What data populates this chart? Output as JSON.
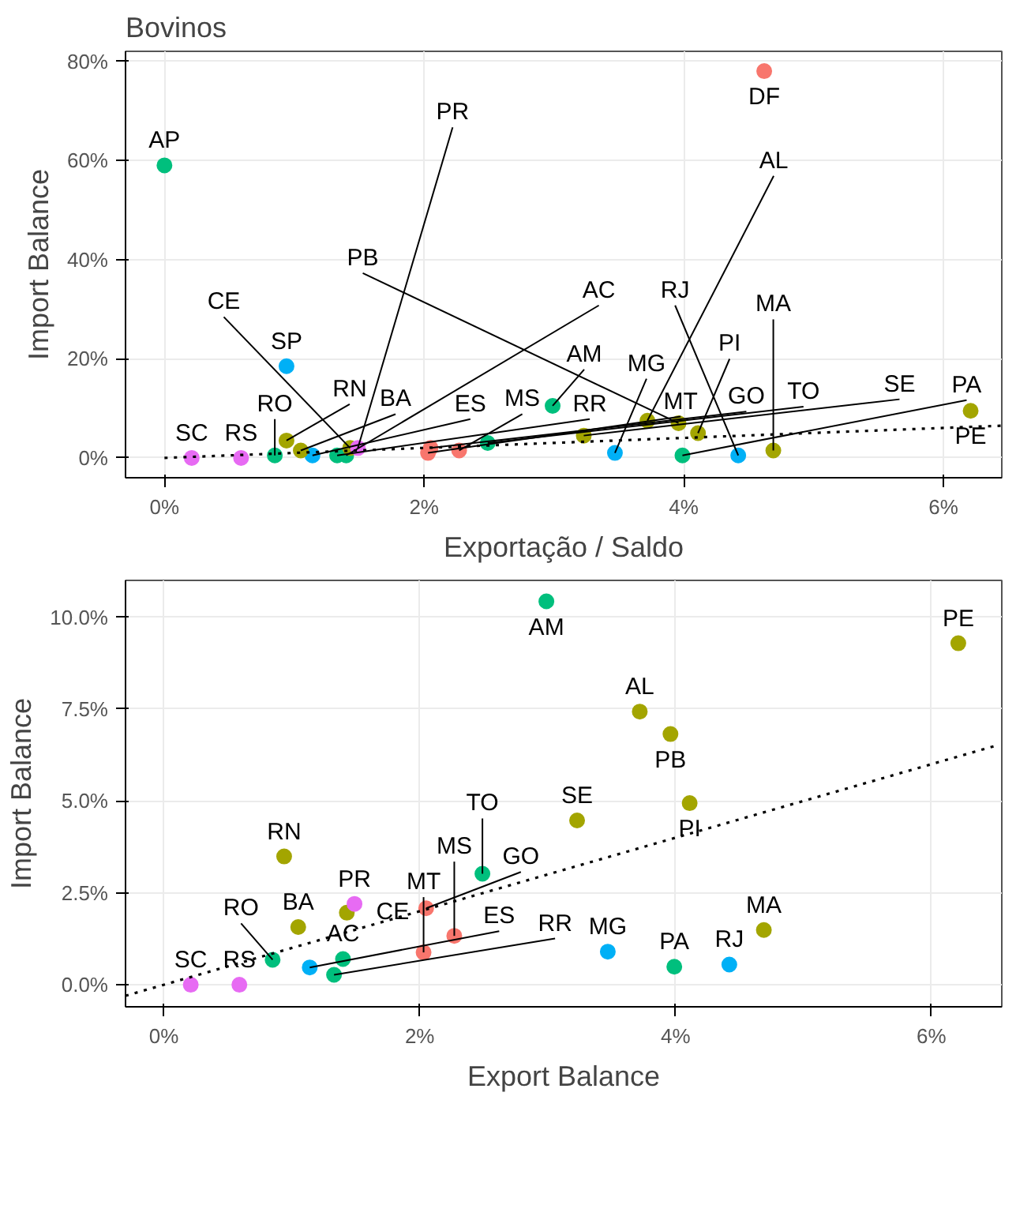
{
  "chart_data": [
    {
      "type": "scatter",
      "title": "Bovinos",
      "xlabel": "Exportação / Saldo",
      "ylabel": "Import Balance",
      "xlim": [
        -0.3,
        6.45
      ],
      "ylim": [
        -4,
        82
      ],
      "xticks": [
        {
          "value": 0,
          "label": "0%"
        },
        {
          "value": 2,
          "label": "2%"
        },
        {
          "value": 4,
          "label": "4%"
        },
        {
          "value": 6,
          "label": "6%"
        }
      ],
      "yticks": [
        {
          "value": 0,
          "label": "0%"
        },
        {
          "value": 20,
          "label": "20%"
        },
        {
          "value": 40,
          "label": "40%"
        },
        {
          "value": 60,
          "label": "60%"
        },
        {
          "value": 80,
          "label": "80%"
        }
      ],
      "grid": true,
      "series": [
        {
          "marker": "circle",
          "x": [
            0,
            4.62,
            0.94,
            0.21,
            0.59,
            0.85,
            1.14,
            1.4,
            1.33,
            0.94,
            1.05,
            1.43,
            1.49,
            2.05,
            2.03,
            2.27,
            2.49,
            2.99,
            3.23,
            3.47,
            3.72,
            3.96,
            3.99,
            4.11,
            4.42,
            4.69,
            6.21
          ],
          "values": [
            59,
            78,
            18.5,
            0,
            0,
            0.5,
            0.5,
            0.5,
            0.5,
            3.5,
            1.5,
            2,
            2,
            2,
            1,
            1.5,
            3,
            10.5,
            4.5,
            1,
            7.5,
            7,
            0.5,
            5,
            0.5,
            1.5,
            9.5
          ],
          "colors": [
            "#00bf7d",
            "#f8766d",
            "#00b0f6",
            "#e76bf3",
            "#e76bf3",
            "#00bf7d",
            "#00b0f6",
            "#00bf7d",
            "#00bf7d",
            "#a3a500",
            "#a3a500",
            "#a3a500",
            "#e76bf3",
            "#f8766d",
            "#f8766d",
            "#f8766d",
            "#00bf7d",
            "#00bf7d",
            "#a3a500",
            "#00b0f6",
            "#a3a500",
            "#a3a500",
            "#00bf7d",
            "#a3a500",
            "#00b0f6",
            "#a3a500",
            "#a3a500"
          ]
        },
        {
          "type": "line",
          "x": [
            0,
            6.45
          ],
          "values": [
            0,
            6.5
          ],
          "color": "#000000",
          "line_style": "dotted"
        }
      ],
      "annotations": [
        {
          "text": "AP",
          "x": 0,
          "y": 59
        },
        {
          "text": "DF",
          "x": 4.62,
          "y": 78
        },
        {
          "text": "SP",
          "x": 0.94,
          "y": 18.5
        },
        {
          "text": "SC",
          "x": 0.21,
          "y": 0
        },
        {
          "text": "RS",
          "x": 0.59,
          "y": 0
        },
        {
          "text": "RO",
          "x": 0.85,
          "y": 0.5
        },
        {
          "text": "ES",
          "x": 1.14,
          "y": 0.5
        },
        {
          "text": "AC",
          "x": 1.4,
          "y": 0.5
        },
        {
          "text": "RR",
          "x": 1.33,
          "y": 0.5
        },
        {
          "text": "RN",
          "x": 0.94,
          "y": 3.5
        },
        {
          "text": "BA",
          "x": 1.05,
          "y": 1.5
        },
        {
          "text": "CE",
          "x": 1.43,
          "y": 2
        },
        {
          "text": "PR",
          "x": 1.49,
          "y": 2
        },
        {
          "text": "GO",
          "x": 2.05,
          "y": 2
        },
        {
          "text": "MT",
          "x": 2.03,
          "y": 1
        },
        {
          "text": "MS",
          "x": 2.27,
          "y": 1.5
        },
        {
          "text": "TO",
          "x": 2.49,
          "y": 3
        },
        {
          "text": "AM",
          "x": 2.99,
          "y": 10.5
        },
        {
          "text": "SE",
          "x": 3.23,
          "y": 4.5
        },
        {
          "text": "MG",
          "x": 3.47,
          "y": 1
        },
        {
          "text": "AL",
          "x": 3.72,
          "y": 7.5
        },
        {
          "text": "PB",
          "x": 3.96,
          "y": 7
        },
        {
          "text": "PA",
          "x": 3.99,
          "y": 0.5
        },
        {
          "text": "PI",
          "x": 4.11,
          "y": 5
        },
        {
          "text": "RJ",
          "x": 4.42,
          "y": 0.5
        },
        {
          "text": "MA",
          "x": 4.69,
          "y": 1.5
        },
        {
          "text": "PE",
          "x": 6.21,
          "y": 9.5
        }
      ]
    },
    {
      "type": "scatter",
      "xlabel": "Export Balance",
      "ylabel": "Import Balance",
      "xlim": [
        -0.3,
        6.55
      ],
      "ylim": [
        -0.6,
        11.0
      ],
      "xticks": [
        {
          "value": 0,
          "label": "0%"
        },
        {
          "value": 2,
          "label": "2%"
        },
        {
          "value": 4,
          "label": "4%"
        },
        {
          "value": 6,
          "label": "6%"
        }
      ],
      "yticks": [
        {
          "value": 0,
          "label": "0.0%"
        },
        {
          "value": 2.5,
          "label": "2.5%"
        },
        {
          "value": 5,
          "label": "5.0%"
        },
        {
          "value": 7.5,
          "label": "7.5%"
        },
        {
          "value": 10,
          "label": "10.0%"
        }
      ],
      "grid": true,
      "series": [
        {
          "marker": "circle",
          "x": [
            0.21,
            0.59,
            0.85,
            1.14,
            1.4,
            1.33,
            0.94,
            1.05,
            1.43,
            1.49,
            2.05,
            2.03,
            2.27,
            2.49,
            2.99,
            3.23,
            3.47,
            3.72,
            3.96,
            3.99,
            4.11,
            4.42,
            4.69,
            6.21
          ],
          "values": [
            0.0,
            0.0,
            0.68,
            0.47,
            0.7,
            0.27,
            3.49,
            1.57,
            1.96,
            2.2,
            2.08,
            0.88,
            1.33,
            3.02,
            10.43,
            4.47,
            0.9,
            7.43,
            6.82,
            0.49,
            4.94,
            0.55,
            1.49,
            9.29
          ],
          "colors": [
            "#e76bf3",
            "#e76bf3",
            "#00bf7d",
            "#00b0f6",
            "#00bf7d",
            "#00bf7d",
            "#a3a500",
            "#a3a500",
            "#a3a500",
            "#e76bf3",
            "#f8766d",
            "#f8766d",
            "#f8766d",
            "#00bf7d",
            "#00bf7d",
            "#a3a500",
            "#00b0f6",
            "#a3a500",
            "#a3a500",
            "#00bf7d",
            "#a3a500",
            "#00b0f6",
            "#a3a500",
            "#a3a500"
          ]
        },
        {
          "type": "line",
          "x": [
            -0.3,
            6.5
          ],
          "values": [
            -0.3,
            6.5
          ],
          "color": "#000000",
          "line_style": "dotted"
        }
      ],
      "annotations": [
        {
          "text": "SC",
          "x": 0.21,
          "y": 0.0
        },
        {
          "text": "RS",
          "x": 0.59,
          "y": 0.0
        },
        {
          "text": "RO",
          "x": 0.85,
          "y": 0.68
        },
        {
          "text": "ES",
          "x": 1.14,
          "y": 0.47
        },
        {
          "text": "AC",
          "x": 1.4,
          "y": 0.7
        },
        {
          "text": "RR",
          "x": 1.33,
          "y": 0.27
        },
        {
          "text": "RN",
          "x": 0.94,
          "y": 3.49
        },
        {
          "text": "BA",
          "x": 1.05,
          "y": 1.57
        },
        {
          "text": "CE",
          "x": 1.43,
          "y": 1.96
        },
        {
          "text": "PR",
          "x": 1.49,
          "y": 2.2
        },
        {
          "text": "GO",
          "x": 2.05,
          "y": 2.08
        },
        {
          "text": "MT",
          "x": 2.03,
          "y": 0.88
        },
        {
          "text": "MS",
          "x": 2.27,
          "y": 1.33
        },
        {
          "text": "TO",
          "x": 2.49,
          "y": 3.02
        },
        {
          "text": "AM",
          "x": 2.99,
          "y": 10.43
        },
        {
          "text": "SE",
          "x": 3.23,
          "y": 4.47
        },
        {
          "text": "MG",
          "x": 3.47,
          "y": 0.9
        },
        {
          "text": "AL",
          "x": 3.72,
          "y": 7.43
        },
        {
          "text": "PB",
          "x": 3.96,
          "y": 6.82
        },
        {
          "text": "PA",
          "x": 3.99,
          "y": 0.49
        },
        {
          "text": "PI",
          "x": 4.11,
          "y": 4.94
        },
        {
          "text": "RJ",
          "x": 4.42,
          "y": 0.55
        },
        {
          "text": "MA",
          "x": 4.69,
          "y": 1.49
        },
        {
          "text": "PE",
          "x": 6.21,
          "y": 9.29
        }
      ]
    }
  ]
}
